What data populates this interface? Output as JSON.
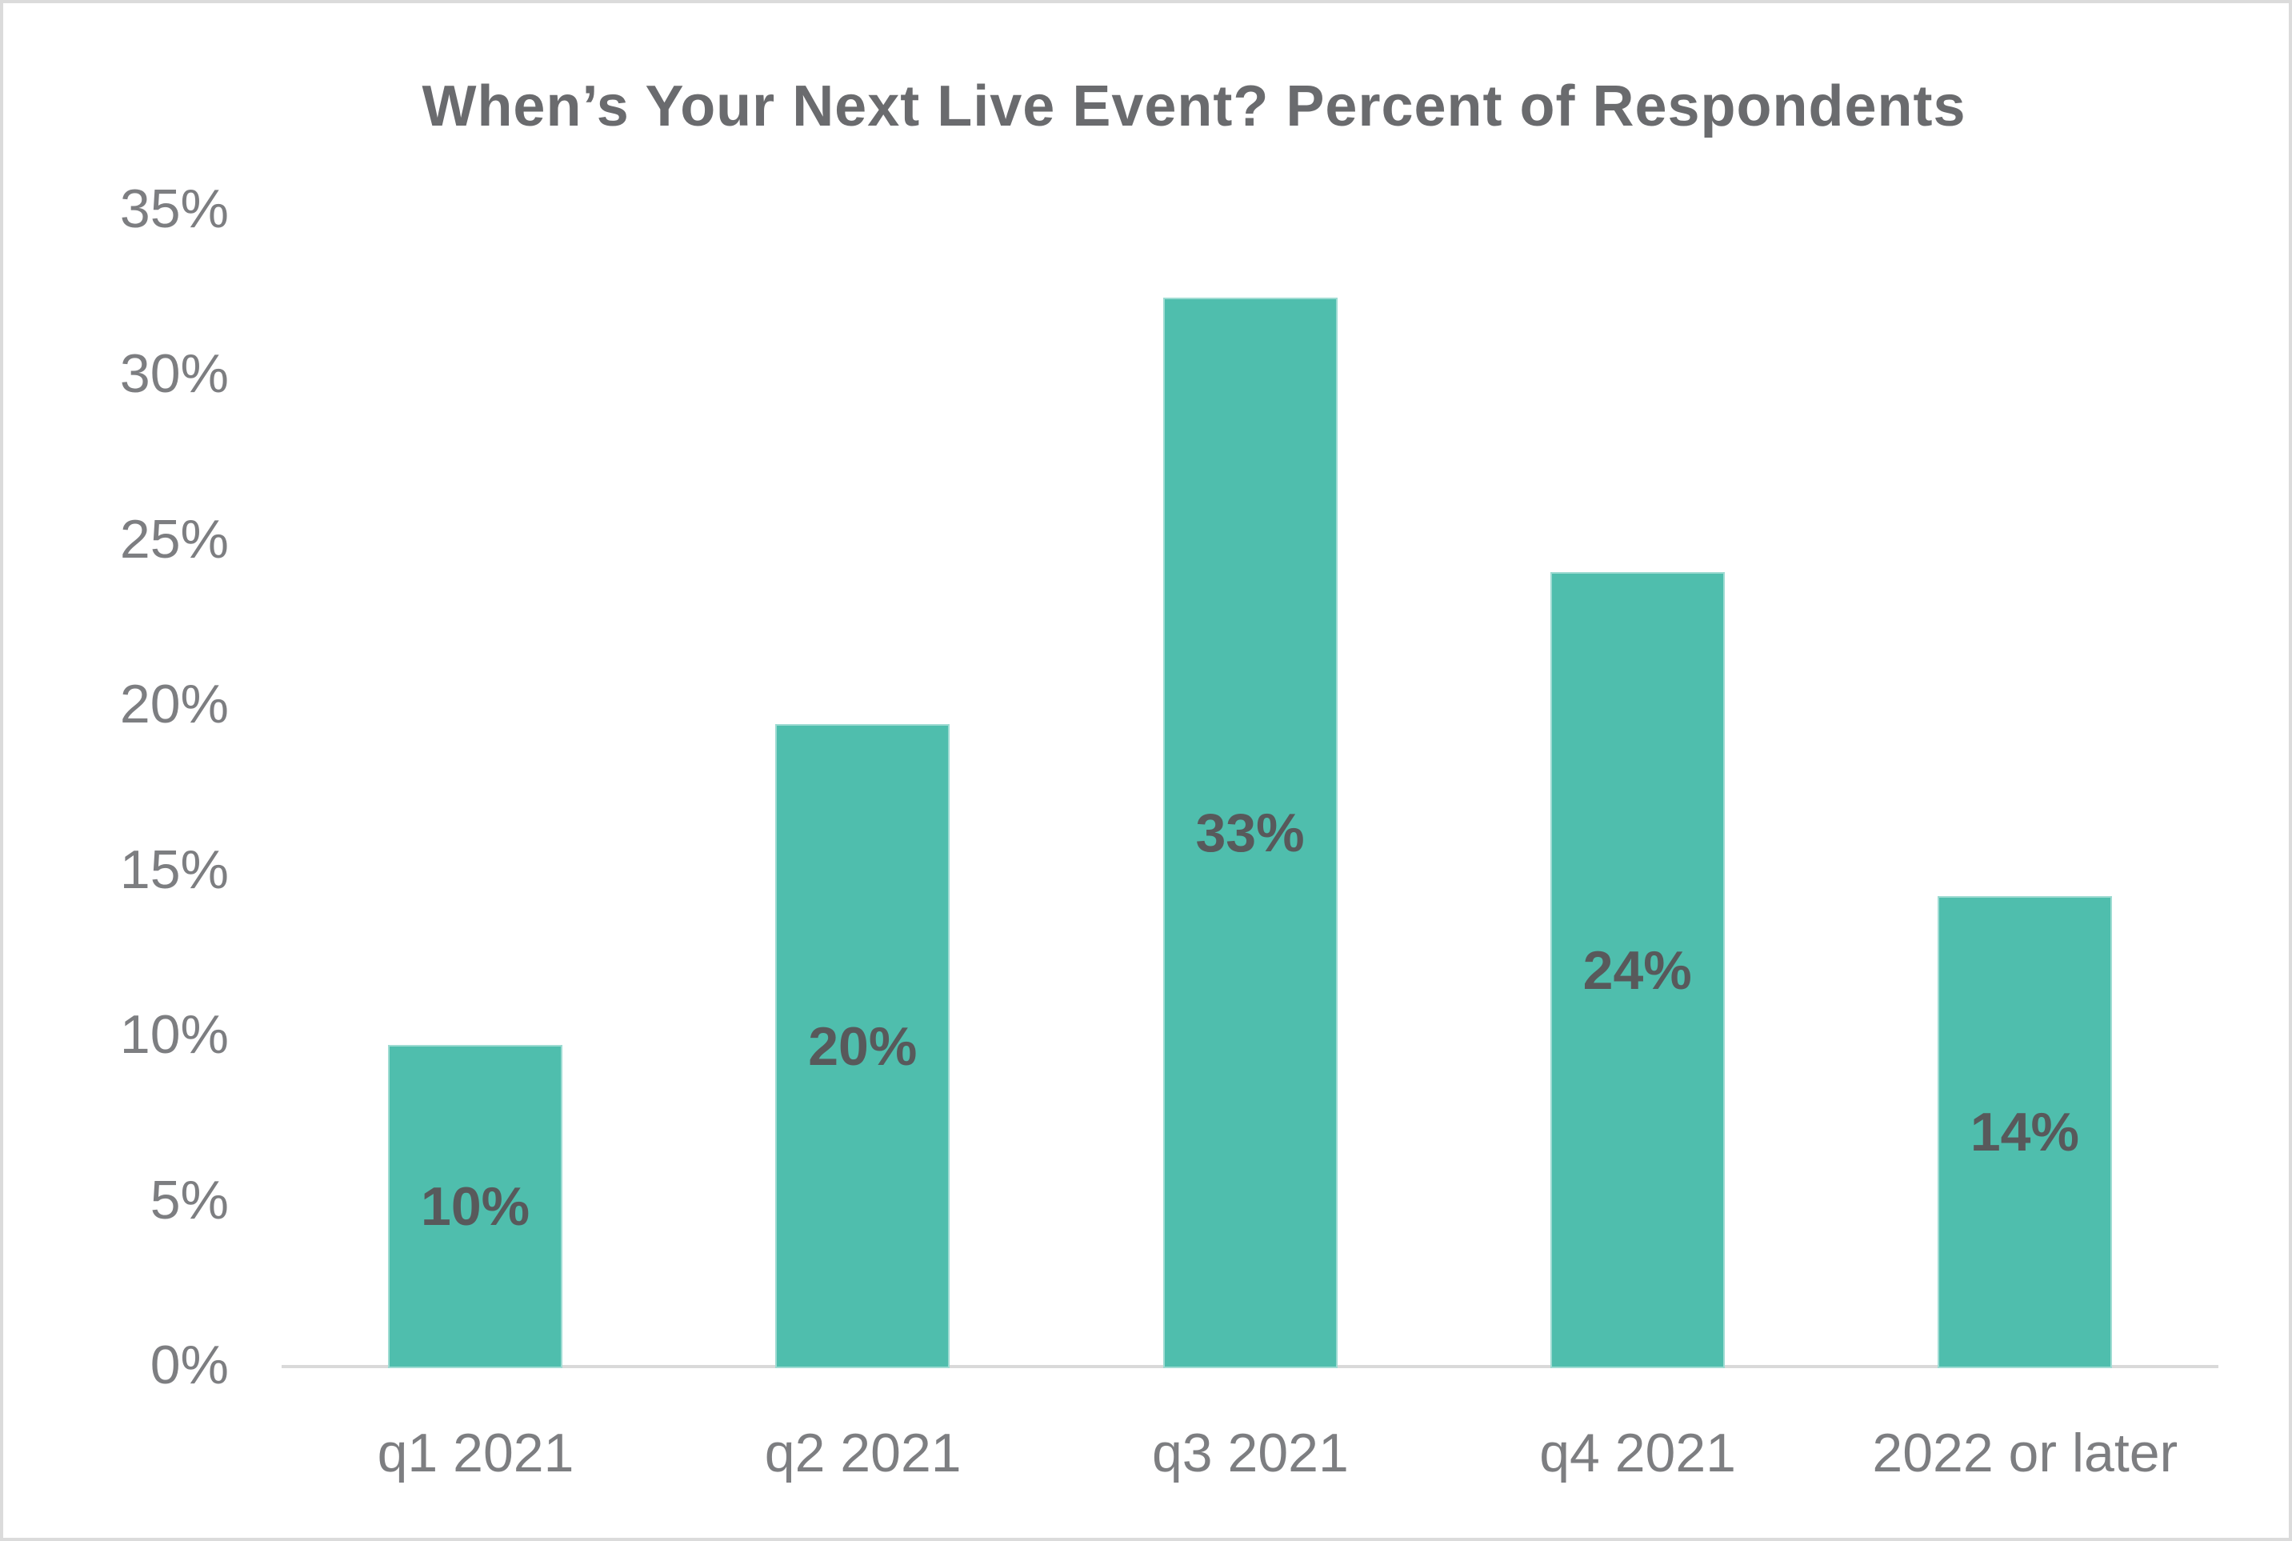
{
  "chart_data": {
    "type": "bar",
    "title": "When’s Your Next Live Event? Percent of Respondents",
    "categories": [
      "q1 2021",
      "q2 2021",
      "q3 2021",
      "q4 2021",
      "2022 or later"
    ],
    "values": [
      10,
      20,
      33,
      24,
      14
    ],
    "bar_labels": [
      "10%",
      "20%",
      "33%",
      "24%",
      "14%"
    ],
    "plotted_heights_pct": [
      9.7,
      19.4,
      32.3,
      24.0,
      14.2
    ],
    "y_tick_labels": [
      "0%",
      "5%",
      "10%",
      "15%",
      "20%",
      "25%",
      "30%",
      "35%"
    ],
    "y_tick_values": [
      0,
      5,
      10,
      15,
      20,
      25,
      30,
      35
    ],
    "ylim": [
      0,
      35
    ],
    "xlabel": "",
    "ylabel": "",
    "grid": false,
    "legend": false,
    "data_label_position": "center-of-bar",
    "colors": {
      "bar": "#4FBEAD",
      "title_text": "#6A6B6E",
      "data_label_text": "#58595B",
      "axis_tick_text": "#7D7E81",
      "axis_line": "#D9D9D9",
      "frame_border": "#DBDBDB",
      "background": "#FFFFFF"
    }
  }
}
